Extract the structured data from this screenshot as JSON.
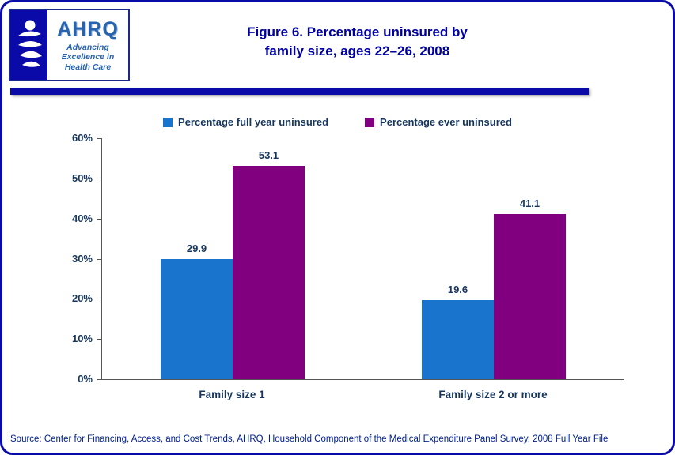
{
  "page": {
    "border_color": "#0a0aa8",
    "rule_color": "#0a0aa8"
  },
  "header": {
    "title_line1": "Figure 6. Percentage uninsured by",
    "title_line2": "family size, ages 22–26, 2008",
    "logo": {
      "ahrq": "AHRQ",
      "tagline": [
        "Advancing",
        "Excellence in",
        "Health Care"
      ]
    }
  },
  "chart_data": {
    "type": "bar",
    "title": "Figure 6. Percentage uninsured by family size, ages 22–26, 2008",
    "categories": [
      "Family size 1",
      "Family size 2 or more"
    ],
    "series": [
      {
        "name": "Percentage full year uninsured",
        "color": "#1874cd",
        "values": [
          29.9,
          19.6
        ]
      },
      {
        "name": "Percentage ever uninsured",
        "color": "#800080",
        "values": [
          53.1,
          41.1
        ]
      }
    ],
    "ylim": [
      0,
      60
    ],
    "ytick_labels": [
      "0%",
      "10%",
      "20%",
      "30%",
      "40%",
      "50%",
      "60%"
    ],
    "value_labels": [
      [
        "29.9",
        "19.6"
      ],
      [
        "53.1",
        "41.1"
      ]
    ],
    "grid": false,
    "legend_position": "top",
    "xlabel": "",
    "ylabel": ""
  },
  "footer": {
    "source": "Source: Center for Financing, Access, and Cost Trends, AHRQ, Household Component of the Medical Expenditure Panel Survey, 2008 Full Year File"
  }
}
